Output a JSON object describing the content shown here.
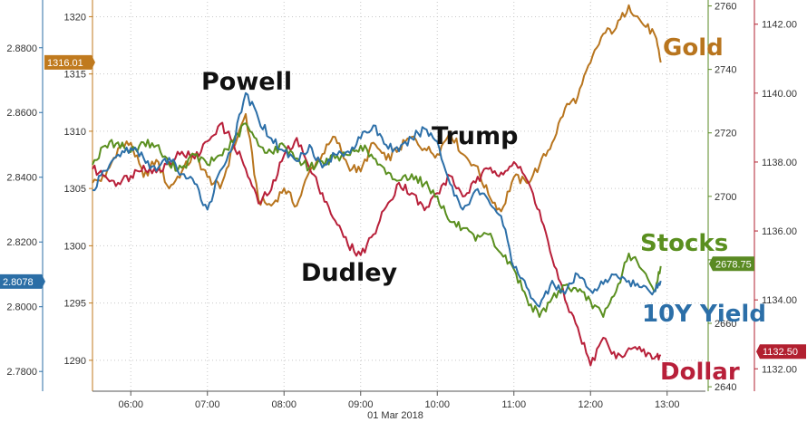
{
  "chart_data": {
    "type": "line",
    "date_label": "01 Mar 2018",
    "x_ticks": [
      "06:00",
      "07:00",
      "08:00",
      "09:00",
      "10:00",
      "11:00",
      "12:00",
      "13:00"
    ],
    "axes": {
      "gold": {
        "ticks": [
          1290,
          1295,
          1300,
          1305,
          1310,
          1315,
          1320
        ],
        "labels": [
          "1290",
          "1295",
          "1300",
          "1305",
          "1310",
          "1315",
          "1320"
        ],
        "range": [
          1287.3,
          1321.3
        ],
        "color": "#c07a1e"
      },
      "yield": {
        "ticks": [
          2.78,
          2.8,
          2.82,
          2.84,
          2.86,
          2.88
        ],
        "labels": [
          "2.7800",
          "2.8000",
          "2.8200",
          "2.8400",
          "2.8600",
          "2.8800"
        ],
        "range": [
          2.7739,
          2.8942
        ],
        "color": "#2b6ea6"
      },
      "stocks": {
        "ticks": [
          2640,
          2660,
          2680,
          2700,
          2720,
          2740,
          2760
        ],
        "labels": [
          "2640",
          "2660",
          "2680",
          "2700",
          "2720",
          "2740",
          "2760"
        ],
        "range": [
          2638.6,
          2761.3
        ],
        "color": "#5a8a23"
      },
      "dollar": {
        "ticks": [
          1132,
          1134,
          1136,
          1138,
          1140,
          1142
        ],
        "labels": [
          "1132.00",
          "1134.00",
          "1136.00",
          "1138.00",
          "1140.00",
          "1142.00"
        ],
        "range": [
          1131.35,
          1142.65
        ],
        "color": "#b22030"
      }
    },
    "series": [
      {
        "name": "Gold",
        "axis": "gold",
        "color": "#b8751e",
        "x": [
          "05:30",
          "05:40",
          "05:50",
          "06:00",
          "06:10",
          "06:20",
          "06:30",
          "06:40",
          "06:50",
          "07:00",
          "07:10",
          "07:20",
          "07:30",
          "07:40",
          "07:50",
          "08:00",
          "08:10",
          "08:20",
          "08:30",
          "08:40",
          "08:50",
          "09:00",
          "09:10",
          "09:20",
          "09:30",
          "09:40",
          "09:50",
          "10:00",
          "10:10",
          "10:20",
          "10:30",
          "10:40",
          "10:50",
          "11:00",
          "11:10",
          "11:20",
          "11:30",
          "11:40",
          "11:50",
          "12:00",
          "12:10",
          "12:20",
          "12:30",
          "12:40",
          "12:50",
          "12:55"
        ],
        "values": [
          1305.5,
          1306.0,
          1308.5,
          1309.0,
          1306.0,
          1307.5,
          1305.0,
          1306.5,
          1308.0,
          1306.0,
          1305.0,
          1308.5,
          1311.5,
          1304.0,
          1303.5,
          1305.0,
          1303.5,
          1306.5,
          1308.0,
          1309.5,
          1307.0,
          1306.5,
          1309.0,
          1307.5,
          1308.5,
          1309.5,
          1308.5,
          1308.0,
          1310.0,
          1308.0,
          1307.0,
          1304.5,
          1303.0,
          1306.0,
          1305.5,
          1307.0,
          1309.0,
          1312.0,
          1313.0,
          1316.0,
          1318.5,
          1319.0,
          1321.0,
          1319.5,
          1318.5,
          1316.0
        ]
      },
      {
        "name": "Dollar",
        "axis": "dollar",
        "color": "#b8203a",
        "x": [
          "05:30",
          "05:40",
          "05:50",
          "06:00",
          "06:10",
          "06:20",
          "06:30",
          "06:40",
          "06:50",
          "07:00",
          "07:10",
          "07:20",
          "07:30",
          "07:40",
          "07:50",
          "08:00",
          "08:10",
          "08:20",
          "08:30",
          "08:40",
          "08:50",
          "09:00",
          "09:10",
          "09:20",
          "09:30",
          "09:40",
          "09:50",
          "10:00",
          "10:10",
          "10:20",
          "10:30",
          "10:40",
          "10:50",
          "11:00",
          "11:10",
          "11:20",
          "11:30",
          "11:40",
          "11:50",
          "12:00",
          "12:10",
          "12:20",
          "12:30",
          "12:40",
          "12:50",
          "12:55"
        ],
        "values": [
          1137.8,
          1137.6,
          1137.4,
          1137.6,
          1137.9,
          1137.7,
          1138.0,
          1138.3,
          1138.1,
          1138.6,
          1139.1,
          1138.6,
          1137.8,
          1136.8,
          1137.2,
          1138.2,
          1138.7,
          1137.8,
          1137.1,
          1136.3,
          1135.6,
          1135.3,
          1135.9,
          1136.7,
          1137.4,
          1137.1,
          1136.6,
          1137.1,
          1137.6,
          1137.0,
          1137.4,
          1137.8,
          1137.7,
          1138.0,
          1137.5,
          1136.6,
          1135.2,
          1134.0,
          1133.2,
          1132.1,
          1132.9,
          1132.3,
          1132.6,
          1132.5,
          1132.3,
          1132.4
        ]
      },
      {
        "name": "Stocks",
        "axis": "stocks",
        "color": "#5a8f1f",
        "x": [
          "05:30",
          "05:40",
          "05:50",
          "06:00",
          "06:10",
          "06:20",
          "06:30",
          "06:40",
          "06:50",
          "07:00",
          "07:10",
          "07:20",
          "07:30",
          "07:40",
          "07:50",
          "08:00",
          "08:10",
          "08:20",
          "08:30",
          "08:40",
          "08:50",
          "09:00",
          "09:10",
          "09:20",
          "09:30",
          "09:40",
          "09:50",
          "10:00",
          "10:10",
          "10:20",
          "10:30",
          "10:40",
          "10:50",
          "11:00",
          "11:10",
          "11:20",
          "11:30",
          "11:40",
          "11:50",
          "12:00",
          "12:10",
          "12:20",
          "12:30",
          "12:40",
          "12:50",
          "12:55"
        ],
        "values": [
          2710,
          2716,
          2717,
          2714,
          2717,
          2716,
          2710,
          2709,
          2713,
          2710,
          2713,
          2717,
          2723,
          2716,
          2714,
          2716,
          2712,
          2709,
          2711,
          2712,
          2713,
          2716,
          2712,
          2707,
          2705,
          2707,
          2704,
          2700,
          2692,
          2690,
          2686,
          2688,
          2682,
          2677,
          2668,
          2662,
          2668,
          2672,
          2670,
          2667,
          2662,
          2670,
          2682,
          2677,
          2670,
          2678
        ]
      },
      {
        "name": "10Y Yield",
        "axis": "yield",
        "color": "#2c6fa8",
        "x": [
          "05:30",
          "05:40",
          "05:50",
          "06:00",
          "06:10",
          "06:20",
          "06:30",
          "06:40",
          "06:50",
          "07:00",
          "07:10",
          "07:20",
          "07:30",
          "07:40",
          "07:50",
          "08:00",
          "08:10",
          "08:20",
          "08:30",
          "08:40",
          "08:50",
          "09:00",
          "09:10",
          "09:20",
          "09:30",
          "09:40",
          "09:50",
          "10:00",
          "10:10",
          "10:20",
          "10:30",
          "10:40",
          "10:50",
          "11:00",
          "11:10",
          "11:20",
          "11:30",
          "11:40",
          "11:50",
          "12:00",
          "12:10",
          "12:20",
          "12:30",
          "12:40",
          "12:50",
          "12:55"
        ],
        "values": [
          2.836,
          2.842,
          2.847,
          2.849,
          2.846,
          2.842,
          2.846,
          2.841,
          2.838,
          2.83,
          2.842,
          2.85,
          2.866,
          2.858,
          2.852,
          2.848,
          2.845,
          2.85,
          2.843,
          2.847,
          2.848,
          2.852,
          2.856,
          2.85,
          2.848,
          2.852,
          2.855,
          2.851,
          2.838,
          2.83,
          2.836,
          2.833,
          2.828,
          2.812,
          2.806,
          2.8,
          2.808,
          2.804,
          2.81,
          2.805,
          2.807,
          2.81,
          2.808,
          2.806,
          2.805,
          2.808
        ]
      }
    ],
    "annotations": [
      {
        "text": "Powell",
        "color": "#111111"
      },
      {
        "text": "Dudley",
        "color": "#111111"
      },
      {
        "text": "Trump",
        "color": "#111111"
      },
      {
        "text": "Gold",
        "color": "#b8751e"
      },
      {
        "text": "Stocks",
        "color": "#5a8f1f"
      },
      {
        "text": "10Y Yield",
        "color": "#2c6fa8"
      },
      {
        "text": "Dollar",
        "color": "#b8203a"
      }
    ],
    "last_values": [
      {
        "series": "Gold",
        "label": "1316.01",
        "value": 1316.01,
        "axis": "gold",
        "color": "#c07a1e"
      },
      {
        "series": "10Y Yield",
        "label": "2.8078",
        "value": 2.8078,
        "axis": "yield",
        "color": "#2b6ea6"
      },
      {
        "series": "Stocks",
        "label": "2678.75",
        "value": 2678.75,
        "axis": "stocks",
        "color": "#5a8a23"
      },
      {
        "series": "Dollar",
        "label": "1132.50",
        "value": 1132.5,
        "axis": "dollar",
        "color": "#b22030"
      }
    ],
    "grid": true
  }
}
